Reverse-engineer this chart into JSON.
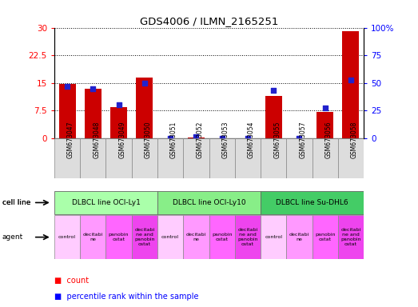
{
  "title": "GDS4006 / ILMN_2165251",
  "samples": [
    "GSM673047",
    "GSM673048",
    "GSM673049",
    "GSM673050",
    "GSM673051",
    "GSM673052",
    "GSM673053",
    "GSM673054",
    "GSM673055",
    "GSM673057",
    "GSM673056",
    "GSM673058"
  ],
  "counts": [
    14.8,
    13.5,
    8.5,
    16.5,
    0.0,
    0.1,
    0.0,
    0.0,
    11.5,
    0.0,
    7.2,
    29.0
  ],
  "percentiles": [
    47,
    45,
    30,
    50,
    0,
    1,
    0,
    0,
    43,
    0,
    27,
    53
  ],
  "ylim_left": [
    0,
    30
  ],
  "ylim_right": [
    0,
    100
  ],
  "yticks_left": [
    0,
    7.5,
    15,
    22.5,
    30
  ],
  "yticks_right": [
    0,
    25,
    50,
    75,
    100
  ],
  "ytick_labels_left": [
    "0",
    "7.5",
    "15",
    "22.5",
    "30"
  ],
  "ytick_labels_right": [
    "0",
    "25",
    "50",
    "75",
    "100%"
  ],
  "bar_color": "#cc0000",
  "dot_color": "#2222cc",
  "cell_lines": [
    {
      "label": "DLBCL line OCI-Ly1",
      "start": 0,
      "end": 4,
      "color": "#aaffaa"
    },
    {
      "label": "DLBCL line OCI-Ly10",
      "start": 4,
      "end": 8,
      "color": "#88ee88"
    },
    {
      "label": "DLBCL line Su-DHL6",
      "start": 8,
      "end": 12,
      "color": "#44cc66"
    }
  ],
  "agents": [
    "control",
    "decitabi\nne",
    "panobin\nostat",
    "decitabi\nne and\npanobin\nostat",
    "control",
    "decitabi\nne",
    "panobin\nostat",
    "decitabi\nne and\npanobin\nostat",
    "control",
    "decitabi\nne",
    "panobin\nostat",
    "decitabi\nne and\npanobin\nostat"
  ],
  "agent_color": "#ff99ff",
  "xticklabel_bg": "#dddddd",
  "left_label_color": "#000000"
}
